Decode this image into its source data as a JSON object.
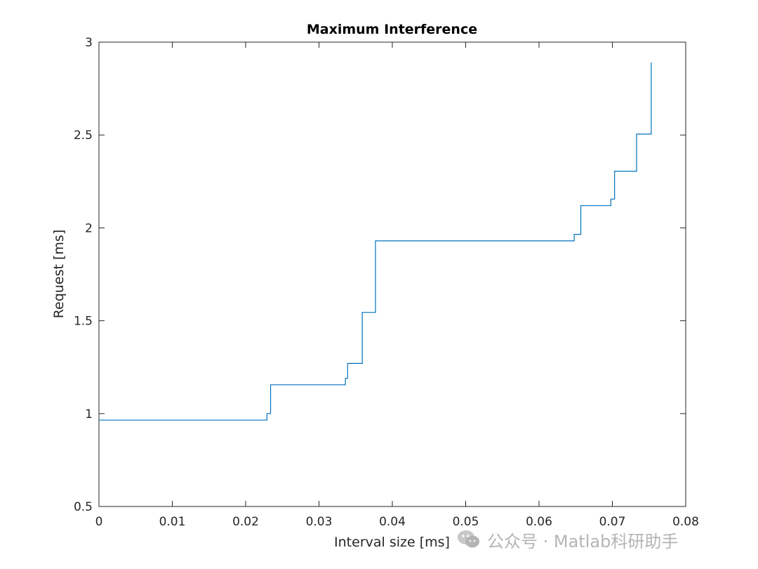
{
  "chart_data": {
    "type": "line",
    "title": "Maximum Interference",
    "xlabel": "Interval size [ms]",
    "ylabel": "Request [ms]",
    "xlim": [
      0,
      0.08
    ],
    "ylim": [
      0.5,
      3
    ],
    "xticks": [
      0,
      0.01,
      0.02,
      0.03,
      0.04,
      0.05,
      0.06,
      0.07,
      0.08
    ],
    "xtick_labels": [
      "0",
      "0.01",
      "0.02",
      "0.03",
      "0.04",
      "0.05",
      "0.06",
      "0.07",
      "0.08"
    ],
    "yticks": [
      0.5,
      1,
      1.5,
      2,
      2.5,
      3
    ],
    "ytick_labels": [
      "0.5",
      "1",
      "1.5",
      "2",
      "2.5",
      "3"
    ],
    "grid": false,
    "line_style": "stairs",
    "series": [
      {
        "color": "#0072bd",
        "x": [
          0,
          0.0229,
          0.0234,
          0.0336,
          0.0339,
          0.0359,
          0.0377,
          0.0648,
          0.0657,
          0.0698,
          0.0703,
          0.0733,
          0.0753,
          0.0753
        ],
        "y": [
          0.965,
          1.0,
          1.155,
          1.19,
          1.27,
          1.545,
          1.93,
          1.965,
          2.12,
          2.155,
          2.305,
          2.505,
          2.89,
          2.89
        ]
      }
    ]
  },
  "watermark": {
    "text": "公众号 · Matlab科研助手",
    "icon": "wechat-icon"
  }
}
